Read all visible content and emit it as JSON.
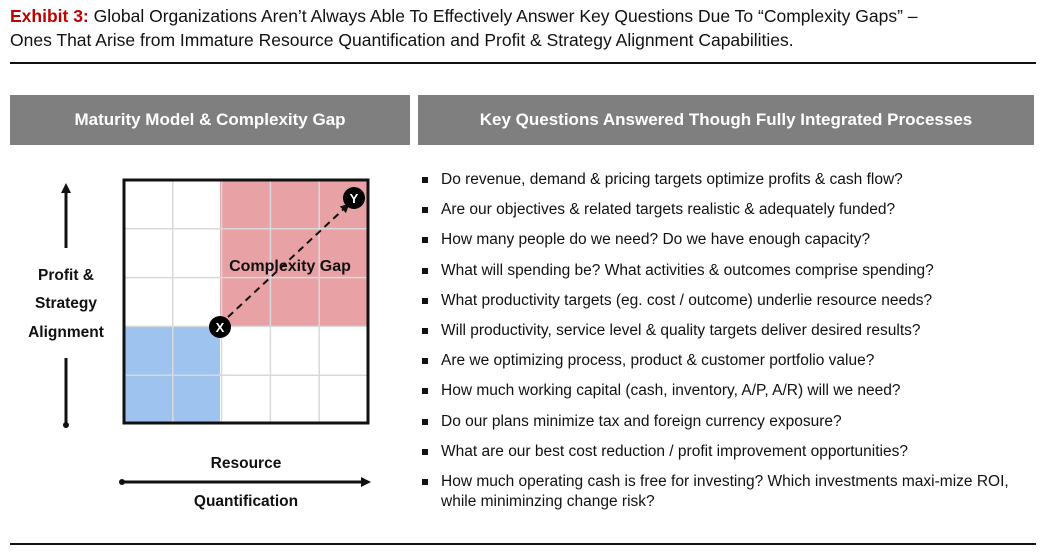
{
  "title": {
    "exhibit_label": "Exhibit 3:",
    "text_line1": "Global Organizations Aren’t Always Able To Effectively Answer Key Questions Due To “Complexity Gaps” –",
    "text_line2": "Ones That Arise from Immature Resource Quantification and Profit & Strategy Alignment Capabilities."
  },
  "left_panel": {
    "header": "Maturity Model & Complexity Gap",
    "y_axis_label": [
      "Profit &",
      "Strategy",
      "Alignment"
    ],
    "x_axis_label_top": "Resource",
    "x_axis_label_bottom": "Quantification",
    "complexity_gap_label": "Complexity Gap",
    "point_x": "X",
    "point_y": "Y",
    "colors": {
      "complexity_region": "#e8a2a6",
      "current_region": "#9dc3ee",
      "grid": "#d9d9d9"
    }
  },
  "right_panel": {
    "header": "Key Questions Answered Though Fully  Integrated Processes",
    "questions": [
      "Do revenue, demand & pricing targets optimize profits & cash flow?",
      "Are our objectives & related targets realistic & adequately funded?",
      "How many people do we need? Do we have enough capacity?",
      "What will spending be? What activities & outcomes comprise spending?",
      "What productivity targets (eg. cost / outcome) underlie resource needs?",
      "Will productivity, service level & quality targets deliver desired results?",
      "Are we optimizing process, product & customer portfolio value?",
      "How much working capital  (cash, inventory, A/P, A/R) will we need?",
      "Do our plans minimize tax and foreign currency exposure?",
      "What are our best cost reduction / profit improvement opportunities?",
      "How much operating cash is free for investing?  Which investments maxi-mize ROI, while miniminzing change risk?"
    ]
  }
}
